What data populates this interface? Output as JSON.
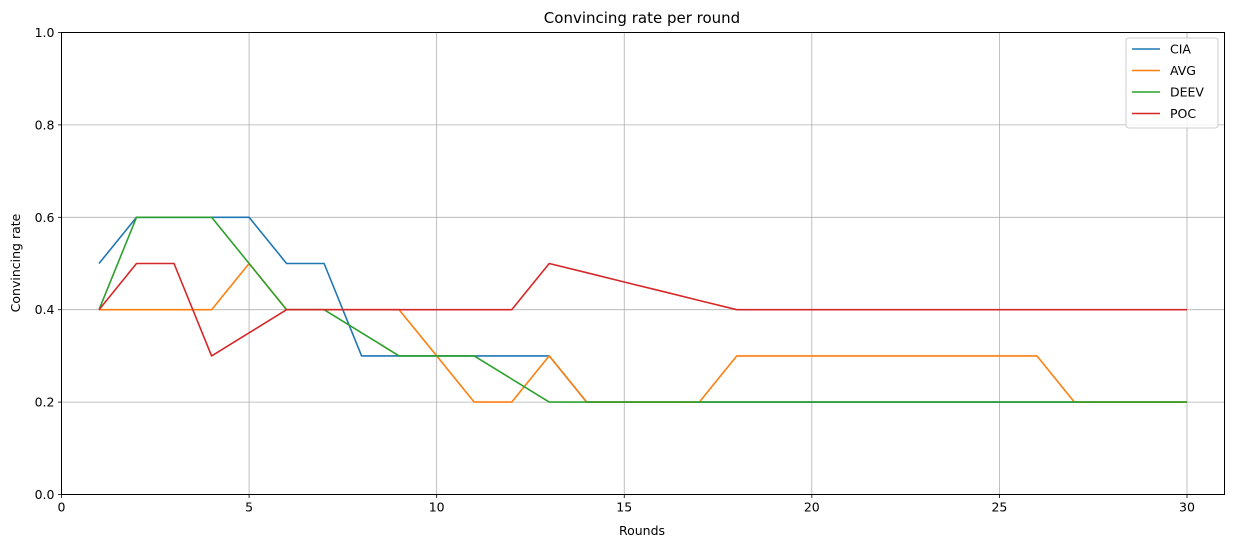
{
  "chart_data": {
    "type": "line",
    "title": "Convincing rate per round",
    "xlabel": "Rounds",
    "ylabel": "Convincing rate",
    "xlim": [
      0,
      31
    ],
    "ylim": [
      0,
      1
    ],
    "xticks": [
      0,
      5,
      10,
      15,
      20,
      25,
      30
    ],
    "yticks": [
      0.0,
      0.2,
      0.4,
      0.6,
      0.8,
      1.0
    ],
    "xtick_labels": [
      "0",
      "5",
      "10",
      "15",
      "20",
      "25",
      "30"
    ],
    "ytick_labels": [
      "0.0",
      "0.2",
      "0.4",
      "0.6",
      "0.8",
      "1.0"
    ],
    "grid": true,
    "legend_position": "top-right",
    "x": [
      1,
      2,
      3,
      4,
      5,
      6,
      7,
      8,
      9,
      10,
      11,
      12,
      13,
      14,
      15,
      16,
      17,
      18,
      19,
      20,
      21,
      22,
      23,
      24,
      25,
      26,
      27,
      28,
      29,
      30
    ],
    "series": [
      {
        "name": "CIA",
        "color": "#1f77b4",
        "values": [
          0.5,
          0.6,
          0.6,
          0.6,
          0.6,
          0.5,
          0.5,
          0.3,
          0.3,
          0.3,
          0.3,
          0.3,
          0.3,
          0.2,
          0.2,
          0.2,
          0.2,
          0.2,
          0.2,
          0.2,
          0.2,
          0.2,
          0.2,
          0.2,
          0.2,
          0.2,
          0.2,
          0.2,
          0.2,
          0.2
        ]
      },
      {
        "name": "AVG",
        "color": "#ff7f0e",
        "values": [
          0.4,
          0.4,
          0.4,
          0.4,
          0.5,
          0.4,
          0.4,
          0.4,
          0.4,
          0.3,
          0.2,
          0.2,
          0.3,
          0.2,
          0.2,
          0.2,
          0.2,
          0.3,
          0.3,
          0.3,
          0.3,
          0.3,
          0.3,
          0.3,
          0.3,
          0.3,
          0.2,
          0.2,
          0.2,
          0.2
        ]
      },
      {
        "name": "DEEV",
        "color": "#2ca02c",
        "values": [
          0.4,
          0.6,
          0.6,
          0.6,
          0.5,
          0.4,
          0.4,
          0.35,
          0.3,
          0.3,
          0.3,
          0.25,
          0.2,
          0.2,
          0.2,
          0.2,
          0.2,
          0.2,
          0.2,
          0.2,
          0.2,
          0.2,
          0.2,
          0.2,
          0.2,
          0.2,
          0.2,
          0.2,
          0.2,
          0.2
        ]
      },
      {
        "name": "POC",
        "color": "#d62728",
        "values": [
          0.4,
          0.5,
          0.5,
          0.3,
          0.35,
          0.4,
          0.4,
          0.4,
          0.4,
          0.4,
          0.4,
          0.4,
          0.5,
          0.48,
          0.46,
          0.44,
          0.42,
          0.4,
          0.4,
          0.4,
          0.4,
          0.4,
          0.4,
          0.4,
          0.4,
          0.4,
          0.4,
          0.4,
          0.4,
          0.4
        ]
      }
    ]
  }
}
